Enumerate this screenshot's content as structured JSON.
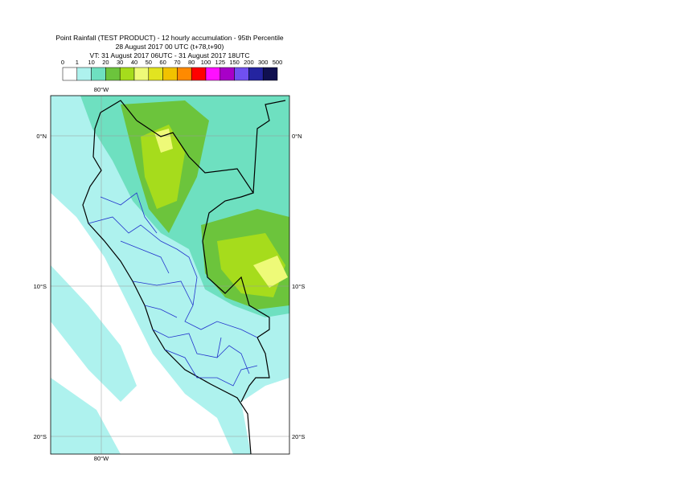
{
  "title": [
    "Point Rainfall (TEST PRODUCT) - 12 hourly accumulation - 95th Percentile",
    "28 August 2017 00 UTC (t+78,t+90)",
    "VT: 31 August 2017 06UTC - 31 August 2017 18UTC"
  ],
  "legend": {
    "bounds": [
      0,
      1,
      10,
      20,
      30,
      40,
      50,
      60,
      70,
      80,
      100,
      125,
      150,
      200,
      300,
      500
    ],
    "colors": [
      "#ffffff",
      "#aef2ee",
      "#6ee0c0",
      "#6cc43c",
      "#a6dc1c",
      "#eefa78",
      "#e2e420",
      "#f2c200",
      "#ff8a00",
      "#ff0000",
      "#ff10ff",
      "#a800c8",
      "#7050f0",
      "#2424a0",
      "#101050"
    ]
  },
  "map": {
    "labels": [
      "80°W",
      "80°W",
      "0°N",
      "0°N",
      "10°S",
      "10°S",
      "20°S",
      "20°S"
    ]
  }
}
